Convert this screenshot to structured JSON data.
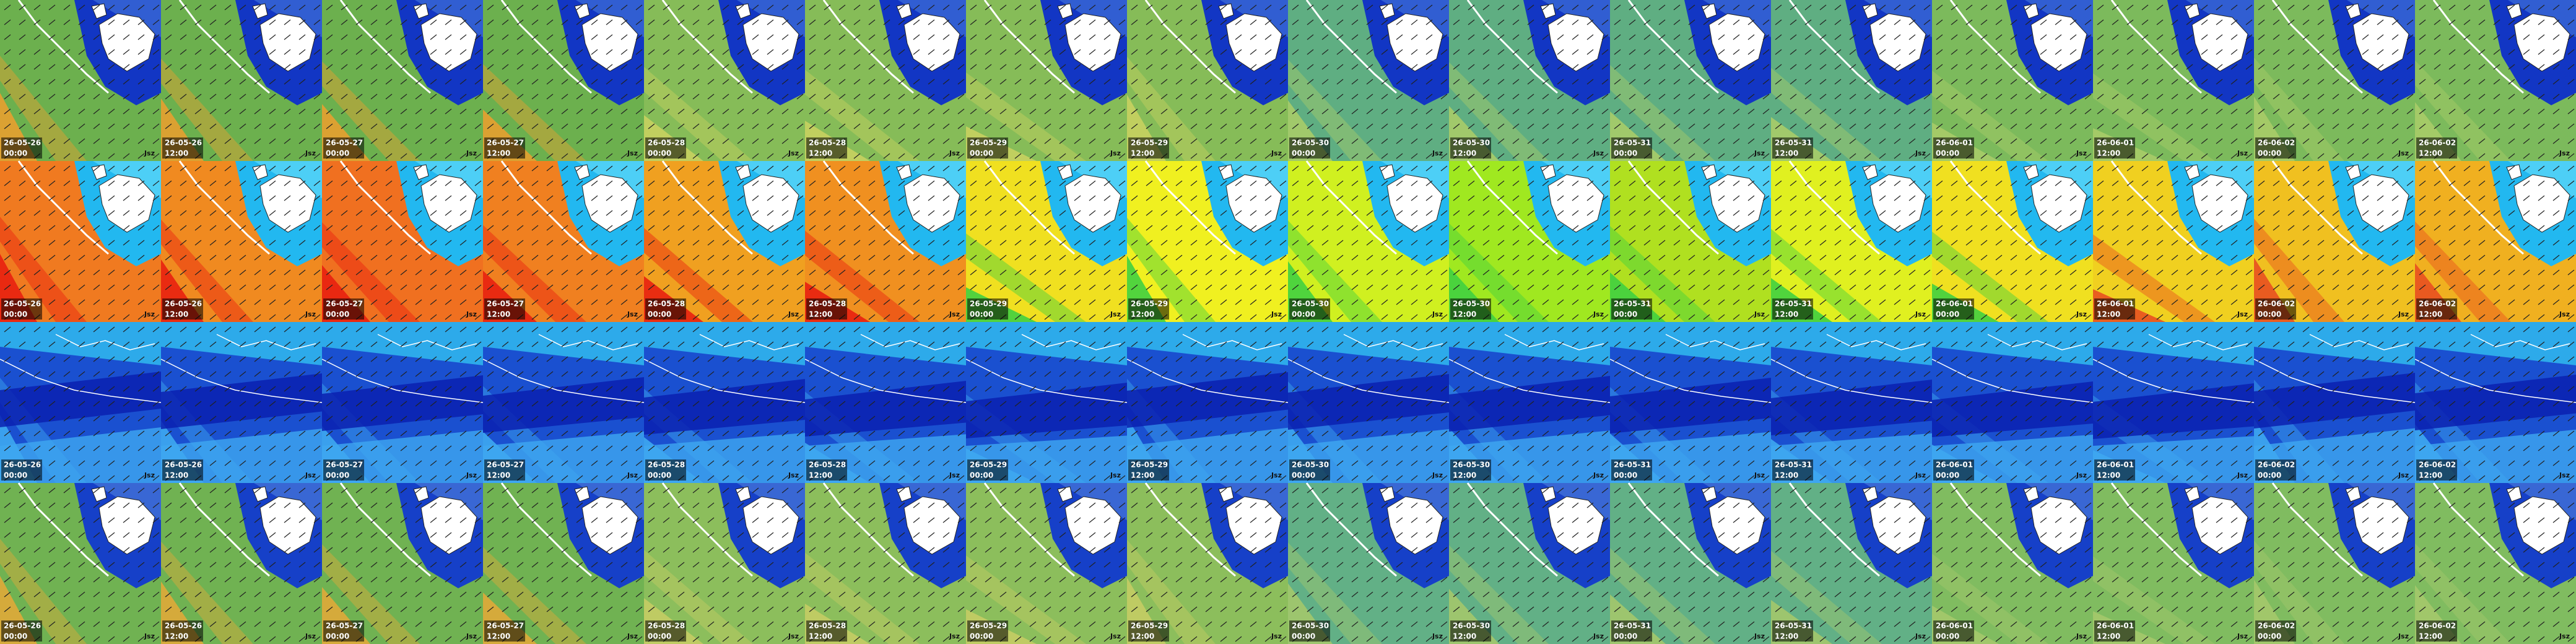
{
  "tiles": {
    "dates": [
      "26-05-26",
      "26-05-26",
      "26-05-27",
      "26-05-27",
      "26-05-28",
      "26-05-28",
      "26-05-29",
      "26-05-29",
      "26-05-30",
      "26-05-30",
      "26-05-31",
      "26-05-31",
      "26-06-01",
      "26-06-01",
      "26-06-02",
      "26-06-02"
    ],
    "times": [
      "00:00",
      "12:00",
      "00:00",
      "12:00",
      "00:00",
      "12:00",
      "00:00",
      "12:00",
      "00:00",
      "12:00",
      "00:00",
      "12:00",
      "00:00",
      "12:00",
      "00:00",
      "12:00"
    ],
    "logo": "Jsz"
  }
}
